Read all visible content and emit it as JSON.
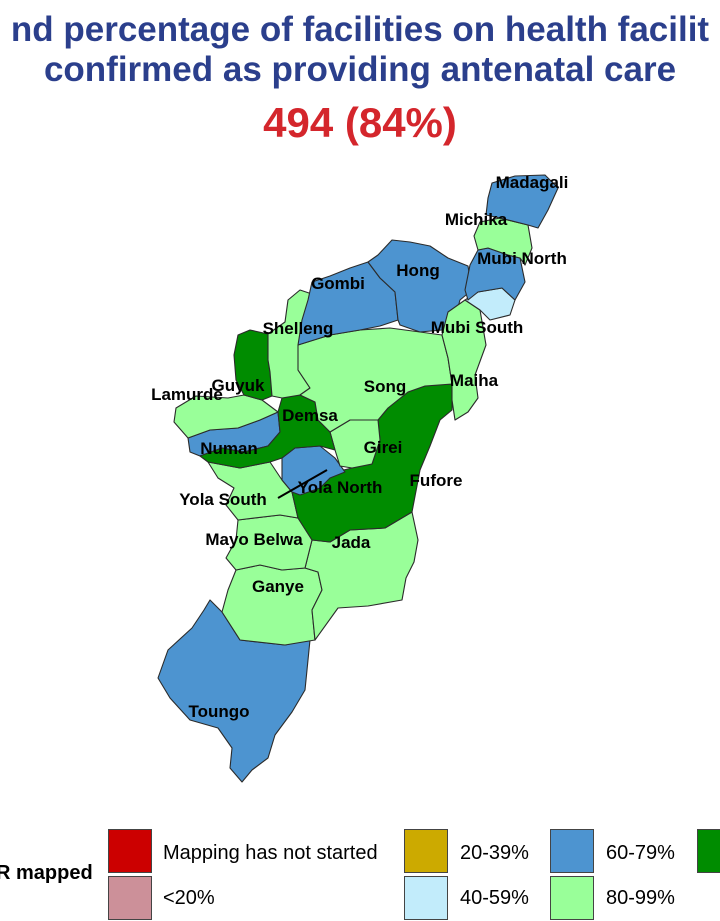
{
  "title": {
    "line1": "nd percentage of facilities on health facilit",
    "line2": "confirmed as providing antenatal care",
    "stat": "494 (84%)"
  },
  "colors": {
    "title": "#2b3f8c",
    "stat": "#d4262c",
    "not_started": "#cc0000",
    "lt20": "#cc9099",
    "c20_39": "#ccaa00",
    "c40_59": "#c2ecfb",
    "c60_79": "#4d94d0",
    "c80_99": "#99ff99",
    "c100": "#008c00"
  },
  "regions": [
    {
      "name": "Madagali",
      "category": "60-79%"
    },
    {
      "name": "Michika",
      "category": "80-99%"
    },
    {
      "name": "Mubi North",
      "category": "60-79%"
    },
    {
      "name": "Hong",
      "category": "60-79%"
    },
    {
      "name": "Gombi",
      "category": "60-79%"
    },
    {
      "name": "Mubi South",
      "category": "40-59%"
    },
    {
      "name": "Shelleng",
      "category": "80-99%"
    },
    {
      "name": "Maiha",
      "category": "80-99%"
    },
    {
      "name": "Song",
      "category": "80-99%"
    },
    {
      "name": "Guyuk",
      "category": "100%"
    },
    {
      "name": "Lamurde",
      "category": "80-99%"
    },
    {
      "name": "Demsa",
      "category": "100%"
    },
    {
      "name": "Numan",
      "category": "60-79%"
    },
    {
      "name": "Girei",
      "category": "80-99%"
    },
    {
      "name": "Fufore",
      "category": "100%"
    },
    {
      "name": "Yola North",
      "category": "60-79%"
    },
    {
      "name": "Yola South",
      "category": "80-99%"
    },
    {
      "name": "Mayo Belwa",
      "category": "80-99%"
    },
    {
      "name": "Jada",
      "category": "80-99%"
    },
    {
      "name": "Ganye",
      "category": "80-99%"
    },
    {
      "name": "Toungo",
      "category": "60-79%"
    }
  ],
  "legend": {
    "title": "R mapped",
    "items": [
      {
        "label": "Mapping has not started",
        "color": "#cc0000"
      },
      {
        "label": "<20%",
        "color": "#cc9099"
      },
      {
        "label": "20-39%",
        "color": "#ccaa00"
      },
      {
        "label": "40-59%",
        "color": "#c2ecfb"
      },
      {
        "label": "60-79%",
        "color": "#4d94d0"
      },
      {
        "label": "80-99%",
        "color": "#99ff99"
      },
      {
        "label": "",
        "color": "#008c00"
      }
    ]
  }
}
